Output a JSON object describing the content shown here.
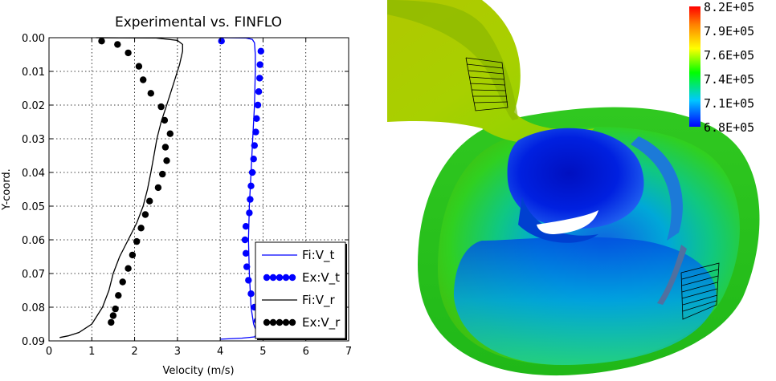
{
  "chart_data": {
    "type": "line",
    "title": "Experimental vs. FINFLO",
    "xlabel": "Velocity (m/s)",
    "ylabel": "Y-coord.",
    "xlim": [
      0,
      7
    ],
    "ylim": [
      0.0,
      0.09
    ],
    "y_inverted": true,
    "grid": true,
    "legend_position": "bottom-right",
    "x_ticks": [
      "0",
      "1",
      "2",
      "3",
      "4",
      "5",
      "6",
      "7"
    ],
    "y_ticks": [
      "0.00",
      "0.01",
      "0.02",
      "0.03",
      "0.04",
      "0.05",
      "0.06",
      "0.07",
      "0.08",
      "0.09"
    ],
    "series": [
      {
        "name": "Fi:V_t",
        "style": "line",
        "color": "#0000ff",
        "points": [
          [
            4.0,
            0.0
          ],
          [
            4.6,
            0.0001
          ],
          [
            4.75,
            0.0005
          ],
          [
            4.8,
            0.0015
          ],
          [
            4.82,
            0.005
          ],
          [
            4.82,
            0.01
          ],
          [
            4.8,
            0.02
          ],
          [
            4.76,
            0.03
          ],
          [
            4.72,
            0.04
          ],
          [
            4.68,
            0.05
          ],
          [
            4.66,
            0.06
          ],
          [
            4.68,
            0.07
          ],
          [
            4.72,
            0.08
          ],
          [
            4.78,
            0.085
          ],
          [
            4.84,
            0.087
          ],
          [
            4.85,
            0.088
          ],
          [
            4.8,
            0.0888
          ],
          [
            4.5,
            0.0892
          ],
          [
            4.0,
            0.0895
          ]
        ]
      },
      {
        "name": "Ex:V_t",
        "style": "markers",
        "color": "#0000ff",
        "points": [
          [
            4.03,
            0.001
          ],
          [
            4.95,
            0.004
          ],
          [
            4.93,
            0.008
          ],
          [
            4.92,
            0.012
          ],
          [
            4.9,
            0.016
          ],
          [
            4.88,
            0.02
          ],
          [
            4.85,
            0.024
          ],
          [
            4.83,
            0.028
          ],
          [
            4.8,
            0.032
          ],
          [
            4.78,
            0.036
          ],
          [
            4.75,
            0.04
          ],
          [
            4.72,
            0.044
          ],
          [
            4.7,
            0.048
          ],
          [
            4.68,
            0.052
          ],
          [
            4.6,
            0.056
          ],
          [
            4.58,
            0.06
          ],
          [
            4.6,
            0.064
          ],
          [
            4.62,
            0.068
          ],
          [
            4.66,
            0.072
          ],
          [
            4.72,
            0.076
          ],
          [
            4.8,
            0.08
          ],
          [
            4.86,
            0.084
          ],
          [
            4.92,
            0.087
          ]
        ]
      },
      {
        "name": "Fi:V_r",
        "style": "line",
        "color": "#000000",
        "points": [
          [
            1.1,
            0.0
          ],
          [
            2.5,
            0.0001
          ],
          [
            3.0,
            0.0008
          ],
          [
            3.12,
            0.002
          ],
          [
            3.12,
            0.004
          ],
          [
            3.05,
            0.008
          ],
          [
            2.95,
            0.012
          ],
          [
            2.85,
            0.016
          ],
          [
            2.75,
            0.02
          ],
          [
            2.62,
            0.025
          ],
          [
            2.52,
            0.03
          ],
          [
            2.45,
            0.035
          ],
          [
            2.38,
            0.04
          ],
          [
            2.3,
            0.045
          ],
          [
            2.2,
            0.05
          ],
          [
            2.05,
            0.055
          ],
          [
            1.85,
            0.06
          ],
          [
            1.65,
            0.065
          ],
          [
            1.5,
            0.07
          ],
          [
            1.4,
            0.075
          ],
          [
            1.25,
            0.08
          ],
          [
            1.0,
            0.085
          ],
          [
            0.7,
            0.0875
          ],
          [
            0.45,
            0.0885
          ],
          [
            0.25,
            0.089
          ]
        ]
      },
      {
        "name": "Ex:V_r",
        "style": "markers",
        "color": "#000000",
        "points": [
          [
            1.23,
            0.001
          ],
          [
            1.6,
            0.002
          ],
          [
            1.85,
            0.0045
          ],
          [
            2.1,
            0.0085
          ],
          [
            2.2,
            0.0125
          ],
          [
            2.38,
            0.0165
          ],
          [
            2.62,
            0.0205
          ],
          [
            2.7,
            0.0245
          ],
          [
            2.83,
            0.0285
          ],
          [
            2.72,
            0.0325
          ],
          [
            2.75,
            0.0365
          ],
          [
            2.65,
            0.0405
          ],
          [
            2.55,
            0.0445
          ],
          [
            2.35,
            0.0485
          ],
          [
            2.25,
            0.0525
          ],
          [
            2.15,
            0.0565
          ],
          [
            2.05,
            0.0605
          ],
          [
            1.95,
            0.0645
          ],
          [
            1.85,
            0.0685
          ],
          [
            1.72,
            0.0725
          ],
          [
            1.62,
            0.0765
          ],
          [
            1.55,
            0.0805
          ],
          [
            1.5,
            0.0825
          ],
          [
            1.45,
            0.0845
          ]
        ]
      }
    ],
    "colorbar": {
      "labels": [
        "8.2E+05",
        "7.9E+05",
        "7.6E+05",
        "7.4E+05",
        "7.1E+05",
        "6.8E+05"
      ],
      "colors": [
        "#ff0000",
        "#ff8000",
        "#ffff00",
        "#00ff00",
        "#00c8ff",
        "#0000ff"
      ]
    }
  }
}
